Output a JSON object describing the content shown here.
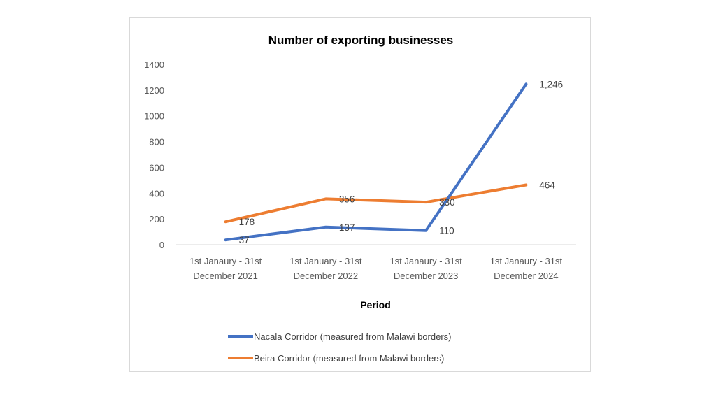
{
  "chart_data": {
    "type": "line",
    "title": "Number of exporting businesses",
    "xlabel": "Period",
    "ylabel": "",
    "ylim": [
      0,
      1400
    ],
    "yticks": [
      0,
      200,
      400,
      600,
      800,
      1000,
      1200,
      1400
    ],
    "grid": false,
    "legend_position": "bottom",
    "categories": [
      [
        "1st Janaury - 31st",
        "December 2021"
      ],
      [
        "1st January - 31st",
        "December 2022"
      ],
      [
        "1st Janaury - 31st",
        "December 2023"
      ],
      [
        "1st Janaury - 31st",
        "December 2024"
      ]
    ],
    "series": [
      {
        "name": "Nacala Corridor (measured from Malawi borders)",
        "color": "#4472C4",
        "values": [
          37,
          137,
          110,
          1246
        ],
        "labels": [
          "37",
          "137",
          "110",
          "1,246"
        ]
      },
      {
        "name": "Beira Corridor (measured from Malawi borders)",
        "color": "#ED7D31",
        "values": [
          178,
          356,
          330,
          464
        ],
        "labels": [
          "178",
          "356",
          "330",
          "464"
        ]
      }
    ]
  }
}
